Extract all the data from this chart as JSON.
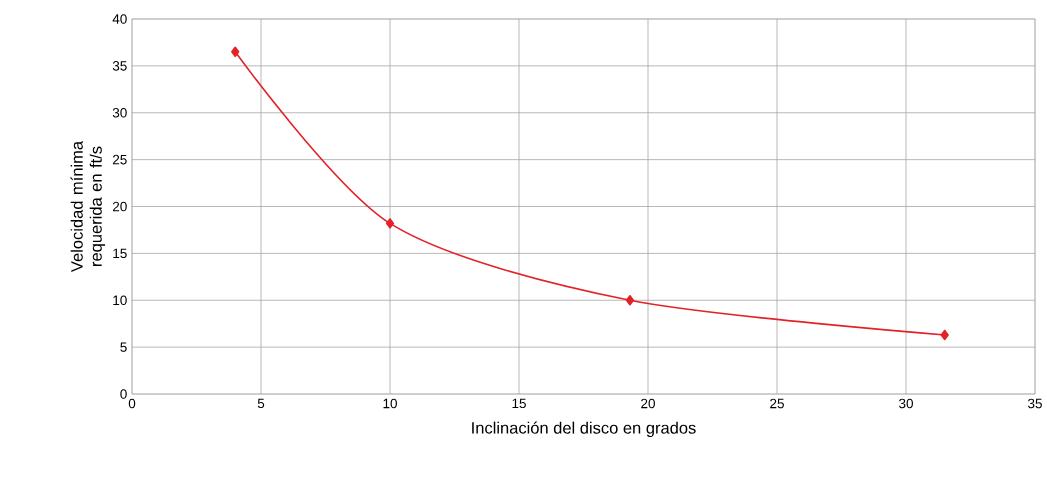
{
  "chart_data": {
    "type": "line",
    "xlabel": "Inclinación del disco en grados",
    "ylabel": "Velocidad mínima requerida en ft/s",
    "x": [
      4,
      10,
      19.3,
      31.5
    ],
    "series": [
      {
        "color": "#e32228",
        "values": [
          36.5,
          18.2,
          10.0,
          6.3
        ]
      }
    ],
    "xlim": [
      0,
      35
    ],
    "ylim": [
      0,
      40
    ],
    "xticks": [
      0,
      5,
      10,
      15,
      20,
      25,
      30,
      35
    ],
    "yticks": [
      0,
      5,
      10,
      15,
      20,
      25,
      30,
      35,
      40
    ],
    "grid": true,
    "marker": "diamond",
    "line_style": "solid"
  }
}
